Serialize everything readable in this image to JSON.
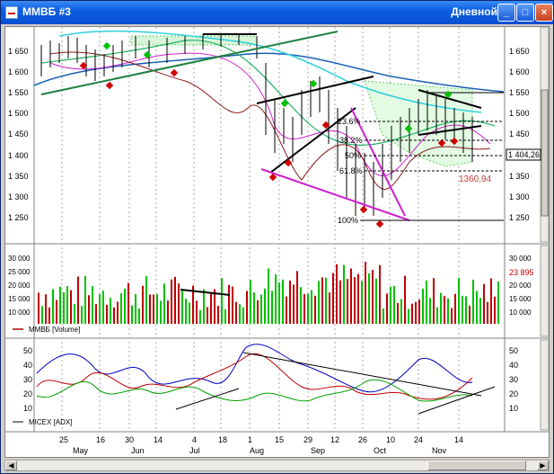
{
  "window": {
    "title": "ММВБ #3",
    "period": "Дневной",
    "minimize_label": "_",
    "maximize_label": "□",
    "close_label": "×"
  },
  "price_panel": {
    "y_ticks": [
      "1 650",
      "1 600",
      "1 550",
      "1 500",
      "1 450",
      "1 400",
      "1 350",
      "1 300",
      "1 250"
    ],
    "fib_labels": [
      "23.6%",
      "38.2%",
      "50%",
      "61.8%",
      "100%"
    ],
    "last_price": "1 404,26",
    "support_label": "1360,94"
  },
  "volume_panel": {
    "y_ticks": [
      "30 000",
      "25 000",
      "20 000",
      "15 000",
      "10 000"
    ],
    "last_value": "23 895",
    "legend": "ММВБ [Volume]"
  },
  "adx_panel": {
    "y_ticks": [
      "50",
      "40",
      "30",
      "20",
      "10"
    ],
    "legend": "MICEX [ADX]"
  },
  "time_axis": {
    "days": [
      "25",
      "16",
      "30",
      "14",
      "4",
      "18",
      "1",
      "15",
      "29",
      "12",
      "26",
      "10",
      "24",
      "14"
    ],
    "months": [
      "May",
      "Jun",
      "Jul",
      "Aug",
      "Sep",
      "Oct",
      "Nov"
    ]
  },
  "colors": {
    "up": "#00c000",
    "down": "#c00000",
    "ma_blue": "#1a5fb4",
    "ma_cyan": "#30d0e0",
    "trend_magenta": "#d020d0"
  }
}
